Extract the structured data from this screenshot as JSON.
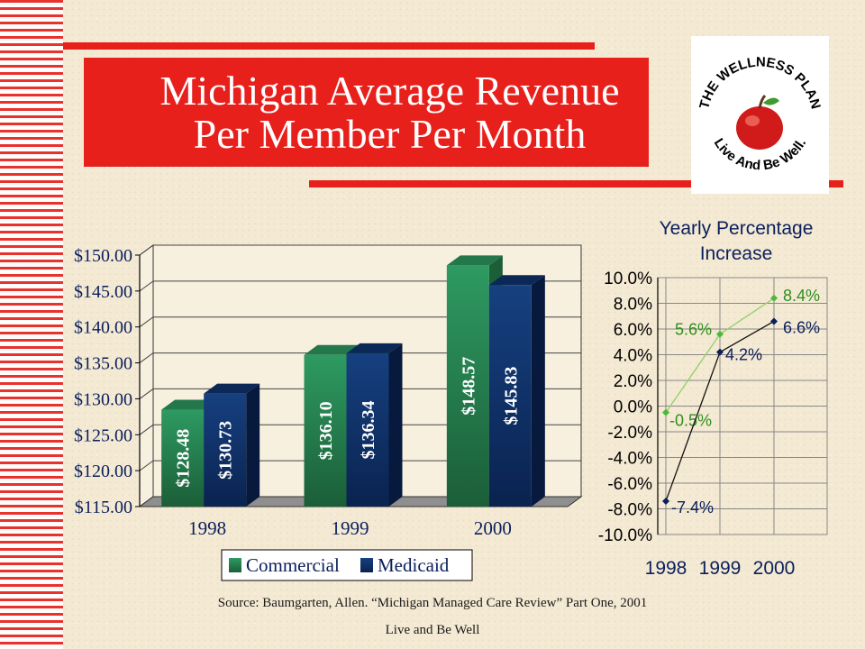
{
  "slide": {
    "title_line1": "Michigan Average Revenue",
    "title_line2": "Per Member Per Month",
    "source": "Source: Baumgarten, Allen. “Michigan Managed Care Review” Part One, 2001",
    "footer": "Live and Be Well",
    "accent_color": "#e8201c"
  },
  "logo": {
    "text_top": "THE WELLNESS PLAN",
    "text_bottom": "Live And Be Well.",
    "icon": "apple-icon"
  },
  "chart_data": [
    {
      "type": "bar",
      "title": "",
      "categories": [
        "1998",
        "1999",
        "2000"
      ],
      "series": [
        {
          "name": "Commercial",
          "values": [
            128.48,
            136.1,
            148.57
          ],
          "labels": [
            "$128.48",
            "$136.10",
            "$148.57"
          ],
          "color": "#2e8b57"
        },
        {
          "name": "Medicaid",
          "values": [
            130.73,
            136.34,
            145.83
          ],
          "labels": [
            "$130.73",
            "$136.34",
            "$145.83"
          ],
          "color": "#12336b"
        }
      ],
      "ylim": [
        115,
        150
      ],
      "yticks": [
        "$115.00",
        "$120.00",
        "$125.00",
        "$130.00",
        "$135.00",
        "$140.00",
        "$145.00",
        "$150.00"
      ],
      "ytick_values": [
        115,
        120,
        125,
        130,
        135,
        140,
        145,
        150
      ],
      "grid": true,
      "legend": "bottom"
    },
    {
      "type": "line",
      "title": "Yearly Percentage Increase",
      "x": [
        "1998",
        "1999",
        "2000"
      ],
      "series": [
        {
          "values": [
            -0.5,
            5.6,
            8.4
          ],
          "labels": [
            "-0.5%",
            "5.6%",
            "8.4%"
          ],
          "color": "#4db83a"
        },
        {
          "values": [
            -7.4,
            4.2,
            6.6
          ],
          "labels": [
            "-7.4%",
            "4.2%",
            "6.6%"
          ],
          "color": "#0a1f5c"
        }
      ],
      "ylim": [
        -10,
        10
      ],
      "yticks": [
        "-10.0%",
        "-8.0%",
        "-6.0%",
        "-4.0%",
        "-2.0%",
        "0.0%",
        "2.0%",
        "4.0%",
        "6.0%",
        "8.0%",
        "10.0%"
      ],
      "ytick_values": [
        -10,
        -8,
        -6,
        -4,
        -2,
        0,
        2,
        4,
        6,
        8,
        10
      ],
      "grid": true
    }
  ]
}
